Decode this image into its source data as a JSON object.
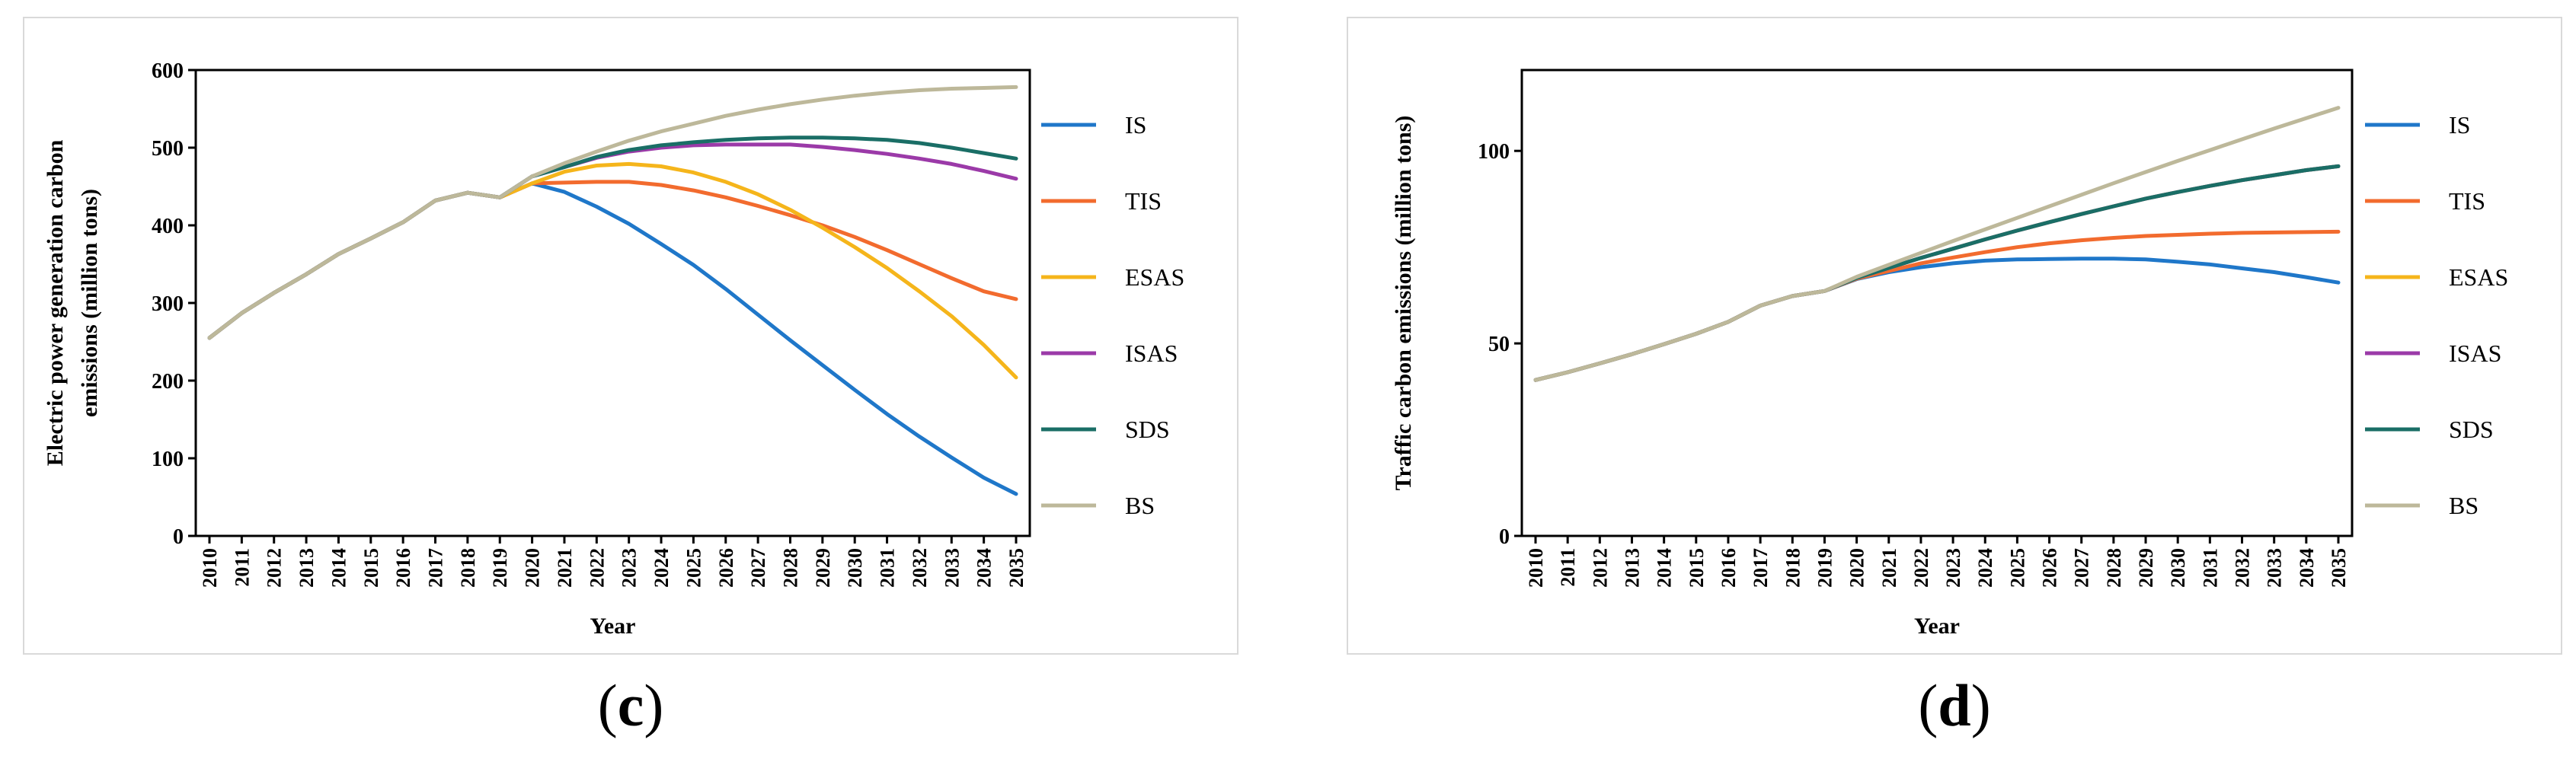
{
  "chart_data": [
    {
      "type": "line",
      "panel": "c",
      "title": "",
      "xlabel": "Year",
      "ylabel": "Electric power generation carbon emissions (million tons)",
      "ylabel_lines": [
        "Electric power generation carbon",
        "emissions (million tons)"
      ],
      "ylim": [
        0,
        600
      ],
      "yticks": [
        0,
        100,
        200,
        300,
        400,
        500,
        600
      ],
      "ytick_labels": [
        "0",
        "100",
        "200",
        "300",
        "400",
        "500",
        "600"
      ],
      "categories": [
        "2010",
        "2011",
        "2012",
        "2013",
        "2014",
        "2015",
        "2016",
        "2017",
        "2018",
        "2019",
        "2020",
        "2021",
        "2022",
        "2023",
        "2024",
        "2025",
        "2026",
        "2027",
        "2028",
        "2029",
        "2030",
        "2031",
        "2032",
        "2033",
        "2034",
        "2035"
      ],
      "series": [
        {
          "name": "IS",
          "color": "#1f77c9",
          "values": [
            255,
            287,
            313,
            337,
            363,
            383,
            404,
            432,
            442,
            436,
            454,
            443,
            424,
            402,
            376,
            349,
            318,
            285,
            252,
            220,
            188,
            157,
            128,
            101,
            75,
            54
          ]
        },
        {
          "name": "TIS",
          "color": "#f26b2e",
          "values": [
            255,
            287,
            313,
            337,
            363,
            383,
            404,
            432,
            442,
            436,
            454,
            455,
            456,
            456,
            452,
            445,
            436,
            425,
            413,
            400,
            385,
            368,
            350,
            332,
            315,
            305
          ]
        },
        {
          "name": "ESAS",
          "color": "#f5b51b",
          "values": [
            255,
            287,
            313,
            337,
            363,
            383,
            404,
            432,
            442,
            436,
            454,
            469,
            477,
            479,
            476,
            468,
            456,
            440,
            420,
            397,
            372,
            345,
            315,
            283,
            246,
            204
          ]
        },
        {
          "name": "ISAS",
          "color": "#9b3aa8",
          "values": [
            255,
            287,
            313,
            337,
            363,
            383,
            404,
            432,
            442,
            436,
            463,
            475,
            487,
            495,
            500,
            503,
            504,
            504,
            504,
            501,
            497,
            492,
            486,
            479,
            470,
            460
          ]
        },
        {
          "name": "SDS",
          "color": "#1a6e66",
          "values": [
            255,
            287,
            313,
            337,
            363,
            383,
            404,
            432,
            442,
            436,
            463,
            475,
            488,
            497,
            503,
            507,
            510,
            512,
            513,
            513,
            512,
            510,
            506,
            500,
            493,
            486
          ]
        },
        {
          "name": "BS",
          "color": "#bdb89a",
          "values": [
            255,
            287,
            313,
            337,
            363,
            383,
            404,
            432,
            442,
            436,
            463,
            480,
            495,
            509,
            521,
            531,
            541,
            549,
            556,
            562,
            567,
            571,
            574,
            576,
            577,
            578
          ]
        }
      ],
      "legend_position": "right"
    },
    {
      "type": "line",
      "panel": "d",
      "title": "",
      "xlabel": "Year",
      "ylabel": "Traffic carbon emissions (million tons)",
      "ylabel_lines": [
        "Traffic carbon emissions (million tons)"
      ],
      "ylim": [
        0,
        121
      ],
      "yticks": [
        0,
        50,
        100
      ],
      "ytick_labels": [
        "0",
        "50",
        "100"
      ],
      "categories": [
        "2010",
        "2011",
        "2012",
        "2013",
        "2014",
        "2015",
        "2016",
        "2017",
        "2018",
        "2019",
        "2020",
        "2021",
        "2022",
        "2023",
        "2024",
        "2025",
        "2026",
        "2027",
        "2028",
        "2029",
        "2030",
        "2031",
        "2032",
        "2033",
        "2034",
        "2035"
      ],
      "series": [
        {
          "name": "IS",
          "color": "#1f77c9",
          "values": [
            40.5,
            42.5,
            44.8,
            47.2,
            49.8,
            52.5,
            55.6,
            59.8,
            62.3,
            63.6,
            66.7,
            68.5,
            69.8,
            70.8,
            71.5,
            71.8,
            71.9,
            72.0,
            72.0,
            71.8,
            71.2,
            70.5,
            69.5,
            68.5,
            67.2,
            65.8
          ]
        },
        {
          "name": "TIS",
          "color": "#f26b2e",
          "values": [
            40.5,
            42.5,
            44.8,
            47.2,
            49.8,
            52.5,
            55.6,
            59.8,
            62.3,
            63.6,
            66.8,
            68.8,
            70.8,
            72.3,
            73.7,
            75.0,
            76.0,
            76.8,
            77.4,
            77.9,
            78.2,
            78.5,
            78.7,
            78.8,
            78.9,
            79.0
          ]
        },
        {
          "name": "ESAS",
          "color": "#f5b51b",
          "values": [
            40.5,
            42.5,
            44.8,
            47.2,
            49.8,
            52.5,
            55.6,
            59.8,
            62.3,
            63.6,
            67.0,
            69.6,
            72.2,
            74.6,
            77.0,
            79.3,
            81.5,
            83.6,
            85.6,
            87.6,
            89.3,
            90.9,
            92.4,
            93.7,
            95.0,
            96.0
          ]
        },
        {
          "name": "ISAS",
          "color": "#9b3aa8",
          "values": [
            40.5,
            42.5,
            44.8,
            47.2,
            49.8,
            52.5,
            55.6,
            59.8,
            62.3,
            63.6,
            67.0,
            69.6,
            72.2,
            74.6,
            77.0,
            79.3,
            81.5,
            83.6,
            85.6,
            87.6,
            89.3,
            90.9,
            92.4,
            93.7,
            95.0,
            96.0
          ]
        },
        {
          "name": "SDS",
          "color": "#1a6e66",
          "values": [
            40.5,
            42.5,
            44.8,
            47.2,
            49.8,
            52.5,
            55.6,
            59.8,
            62.3,
            63.6,
            67.0,
            69.6,
            72.2,
            74.6,
            77.0,
            79.3,
            81.5,
            83.6,
            85.6,
            87.6,
            89.3,
            90.9,
            92.4,
            93.7,
            95.0,
            96.0
          ]
        },
        {
          "name": "BS",
          "color": "#bdb89a",
          "values": [
            40.5,
            42.5,
            44.8,
            47.2,
            49.8,
            52.5,
            55.6,
            59.8,
            62.3,
            63.6,
            67.3,
            70.4,
            73.5,
            76.6,
            79.6,
            82.6,
            85.6,
            88.6,
            91.6,
            94.5,
            97.4,
            100.2,
            103.0,
            105.8,
            108.5,
            111.2
          ]
        }
      ],
      "legend_position": "right"
    }
  ],
  "captions": {
    "c": {
      "open": "(",
      "letter": "c",
      "close": ")"
    },
    "d": {
      "open": "(",
      "letter": "d",
      "close": ")"
    }
  }
}
